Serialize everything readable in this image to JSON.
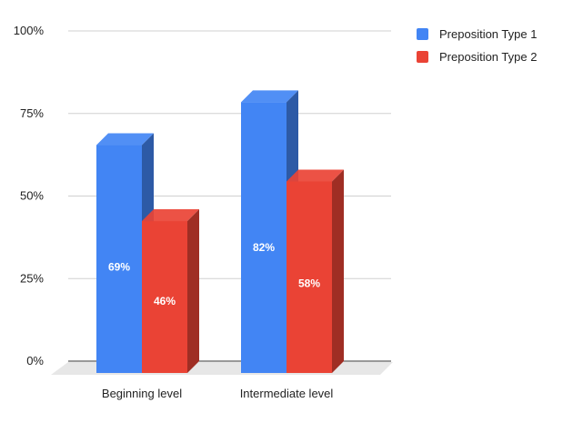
{
  "chart_data": {
    "type": "bar",
    "style": "3d-grouped",
    "categories": [
      "Beginning level",
      "Intermediate level"
    ],
    "series": [
      {
        "name": "Preposition Type 1",
        "color": "#4285f4",
        "values": [
          69,
          82
        ],
        "labels": [
          "69%",
          "82%"
        ]
      },
      {
        "name": "Preposition Type 2",
        "color": "#ea4335",
        "values": [
          46,
          58
        ],
        "labels": [
          "46%",
          "58%"
        ]
      }
    ],
    "y_axis": {
      "ticks": [
        0,
        25,
        50,
        75,
        100
      ],
      "tick_labels": [
        "0%",
        "25%",
        "50%",
        "75%",
        "100%"
      ],
      "ylim": [
        0,
        100
      ],
      "unit": "%"
    },
    "grid": true,
    "legend_position": "top-right",
    "title": "",
    "xlabel": "",
    "ylabel": ""
  }
}
